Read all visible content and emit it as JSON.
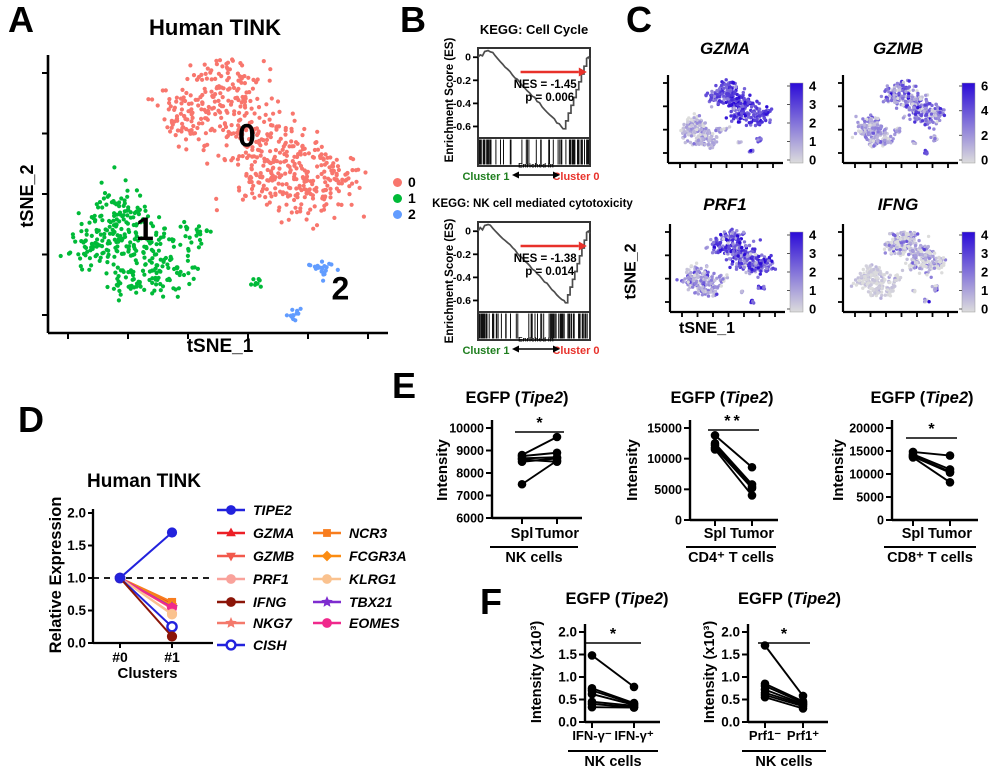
{
  "panels": {
    "a": "A",
    "b": "B",
    "c": "C",
    "d": "D",
    "e": "E",
    "f": "F"
  },
  "panel_c": {
    "xlabel": "tSNE_1",
    "ylabel": "tSNE_2"
  },
  "chart_data": [
    {
      "id": "tsne_clusters",
      "type": "scatter",
      "title": "Human TINK",
      "xlabel": "tSNE_1",
      "ylabel": "tSNE_2",
      "clusters": [
        {
          "name": "0",
          "color": "#F8766D",
          "annotation": {
            "text": "0",
            "x": 0.585,
            "y": 0.33
          },
          "blobs": [
            [
              0.52,
              0.1,
              0.1,
              85
            ],
            [
              0.42,
              0.22,
              0.1,
              95
            ],
            [
              0.57,
              0.26,
              0.12,
              105
            ],
            [
              0.68,
              0.36,
              0.12,
              115
            ],
            [
              0.78,
              0.49,
              0.1,
              95
            ],
            [
              0.62,
              0.46,
              0.09,
              55
            ],
            [
              0.86,
              0.43,
              0.06,
              38
            ]
          ]
        },
        {
          "name": "1",
          "color": "#00BA38",
          "annotation": {
            "text": "1",
            "x": 0.285,
            "y": 0.665
          },
          "blobs": [
            [
              0.2,
              0.56,
              0.09,
              75
            ],
            [
              0.15,
              0.69,
              0.09,
              75
            ],
            [
              0.28,
              0.68,
              0.1,
              85
            ],
            [
              0.35,
              0.79,
              0.08,
              55
            ],
            [
              0.24,
              0.81,
              0.06,
              35
            ],
            [
              0.44,
              0.65,
              0.05,
              22
            ],
            [
              0.615,
              0.815,
              0.016,
              8
            ]
          ]
        },
        {
          "name": "2",
          "color": "#619CFF",
          "annotation": {
            "text": "2",
            "x": 0.86,
            "y": 0.88
          },
          "blobs": [
            [
              0.81,
              0.77,
              0.033,
              22
            ],
            [
              0.725,
              0.935,
              0.02,
              12
            ]
          ]
        }
      ],
      "legend": [
        {
          "label": "0",
          "color": "#F8766D"
        },
        {
          "label": "1",
          "color": "#00BA38"
        },
        {
          "label": "2",
          "color": "#619CFF"
        }
      ]
    },
    {
      "id": "gsea_cell_cycle",
      "type": "gsea",
      "title": "KEGG: Cell Cycle",
      "ylabel": "Enrichment Score (ES)",
      "yticks": [
        "0",
        "-0.2",
        "-0.4",
        "-0.6"
      ],
      "ytick_values": [
        0,
        -0.2,
        -0.4,
        -0.6
      ],
      "es_min": -0.62,
      "es_min_pos": 0.76,
      "seed": 7,
      "stats": {
        "nes": "NES = -1.45",
        "p": "p = 0.006"
      },
      "barcode": {
        "left": [
          22,
          0.01,
          0.12
        ],
        "mid": [
          13,
          0.14,
          0.6
        ],
        "right": [
          42,
          0.63,
          0.99
        ]
      },
      "enriched_label": "Enriched in",
      "left": "Cluster 1",
      "right": "Cluster 0",
      "left_color": "#1E7E1E",
      "right_color": "#E8312A"
    },
    {
      "id": "gsea_nk_cytotoxicity",
      "type": "gsea",
      "title": "KEGG: NK cell mediated cytotoxicity",
      "ylabel": "Enrichment Score (ES)",
      "yticks": [
        "0",
        "-0.2",
        "-0.4",
        "-0.6"
      ],
      "ytick_values": [
        0,
        -0.2,
        -0.4,
        -0.6
      ],
      "es_min": -0.62,
      "es_min_pos": 0.78,
      "seed": 13,
      "stats": {
        "nes": "NES = -1.38",
        "p": "p = 0.014"
      },
      "barcode": {
        "left": [
          26,
          0.01,
          0.18
        ],
        "mid": [
          16,
          0.19,
          0.6
        ],
        "right": [
          40,
          0.62,
          0.99
        ]
      },
      "enriched_label": "Enriched in",
      "left": "Cluster 1",
      "right": "Cluster 0",
      "left_color": "#1E7E1E",
      "right_color": "#E8312A"
    },
    {
      "id": "feature_gzma",
      "type": "feature",
      "title": "GZMA",
      "max": 4,
      "colorbar_ticks": [
        "4",
        "3",
        "2",
        "1",
        "0"
      ],
      "expression": {
        "0": [
          2.9,
          0.8
        ],
        "1": [
          0.8,
          0.6
        ],
        "2": [
          2.4,
          0.7
        ]
      },
      "seed": 21,
      "color_low": "#DCDCDC",
      "color_high": "#2B0BD7"
    },
    {
      "id": "feature_gzmb",
      "type": "feature",
      "title": "GZMB",
      "max": 6,
      "colorbar_ticks": [
        "6",
        "4",
        "2",
        "0"
      ],
      "expression": {
        "0": [
          2.6,
          1.5
        ],
        "1": [
          1.6,
          1.1
        ],
        "2": [
          2.6,
          1.2
        ]
      },
      "seed": 22,
      "color_low": "#DCDCDC",
      "color_high": "#2B0BD7"
    },
    {
      "id": "feature_prf1",
      "type": "feature",
      "title": "PRF1",
      "max": 4,
      "colorbar_ticks": [
        "4",
        "3",
        "2",
        "1",
        "0"
      ],
      "expression": {
        "0": [
          2.4,
          1.0
        ],
        "1": [
          1.1,
          0.8
        ],
        "2": [
          2.2,
          0.8
        ]
      },
      "seed": 23,
      "color_low": "#DCDCDC",
      "color_high": "#2B0BD7"
    },
    {
      "id": "feature_ifng",
      "type": "feature",
      "title": "IFNG",
      "max": 4,
      "colorbar_ticks": [
        "4",
        "3",
        "2",
        "1",
        "0"
      ],
      "expression": {
        "0": [
          0.55,
          0.95
        ],
        "1": [
          0.18,
          0.38
        ],
        "2": [
          1.3,
          1.1
        ]
      },
      "seed": 24,
      "color_low": "#DCDCDC",
      "color_high": "#2B0BD7"
    },
    {
      "id": "relative_expression",
      "type": "slope",
      "title": "Human TINK",
      "ylabel": "Relative Expression",
      "xlabel": "Clusters",
      "categories": [
        "#0",
        "#1"
      ],
      "yticks": [
        "2.0",
        "1.5",
        "1.0",
        "0.5",
        "0.0"
      ],
      "ytick_values": [
        2.0,
        1.5,
        1.0,
        0.5,
        0.0
      ],
      "ylim": [
        0,
        2
      ],
      "dashed_y": 1.0,
      "series": [
        {
          "name": "GZMA",
          "color": "#EC1F26",
          "marker": "triangle-up",
          "values": [
            1.0,
            0.61
          ]
        },
        {
          "name": "GZMB",
          "color": "#F2594C",
          "marker": "triangle-down",
          "values": [
            1.0,
            0.56
          ]
        },
        {
          "name": "NKG7",
          "color": "#F4796B",
          "marker": "star",
          "values": [
            1.0,
            0.53
          ]
        },
        {
          "name": "NCR3",
          "color": "#F87D1E",
          "marker": "square",
          "values": [
            1.0,
            0.63
          ]
        },
        {
          "name": "FCGR3A",
          "color": "#FB8C12",
          "marker": "diamond",
          "values": [
            1.0,
            0.58
          ]
        },
        {
          "name": "TBX21",
          "color": "#7E2CCF",
          "marker": "star",
          "values": [
            1.0,
            0.55
          ]
        },
        {
          "name": "EOMES",
          "color": "#F0298C",
          "marker": "circle",
          "values": [
            1.0,
            0.54
          ]
        },
        {
          "name": "PRF1",
          "color": "#F9A29B",
          "marker": "circle",
          "values": [
            1.0,
            0.45
          ]
        },
        {
          "name": "KLRG1",
          "color": "#FAC28F",
          "marker": "circle",
          "values": [
            1.0,
            0.44
          ]
        },
        {
          "name": "CISH",
          "color": "#2222DD",
          "marker": "circle",
          "open": true,
          "values": [
            1.0,
            0.25
          ]
        },
        {
          "name": "IFNG",
          "color": "#8B1508",
          "marker": "circle",
          "values": [
            1.0,
            0.1
          ]
        },
        {
          "name": "TIPE2",
          "color": "#2222DD",
          "marker": "circle",
          "values": [
            1.0,
            1.7
          ]
        }
      ],
      "legend": {
        "col1": [
          "TIPE2",
          "GZMA",
          "GZMB",
          "PRF1",
          "IFNG",
          "NKG7",
          "CISH"
        ],
        "col2": [
          "NCR3",
          "FCGR3A",
          "KLRG1",
          "TBX21",
          "EOMES"
        ]
      }
    },
    {
      "id": "egfp_nk",
      "type": "paired",
      "title_pre": "EGFP (",
      "title_gene": "Tipe2",
      "title_post": ")",
      "ylabel": "Intensity",
      "ylim": [
        6000,
        10000
      ],
      "yticks": [
        "10000",
        "9000",
        "8000",
        "7000",
        "6000"
      ],
      "ytick_values": [
        10000,
        9000,
        8000,
        7000,
        6000
      ],
      "groups": [
        "Spl",
        "Tumor"
      ],
      "group_label": "NK cells",
      "sig": "*",
      "pairs": [
        [
          7500,
          8550
        ],
        [
          8500,
          8650
        ],
        [
          8600,
          8500
        ],
        [
          8650,
          8700
        ],
        [
          8750,
          8900
        ],
        [
          8800,
          9600
        ]
      ]
    },
    {
      "id": "egfp_cd4",
      "type": "paired",
      "title_pre": "EGFP (",
      "title_gene": "Tipe2",
      "title_post": ")",
      "ylabel": "Intensity",
      "ylim": [
        0,
        15000
      ],
      "yticks": [
        "15000",
        "10000",
        "5000",
        "0"
      ],
      "ytick_values": [
        15000,
        10000,
        5000,
        0
      ],
      "groups": [
        "Spl",
        "Tumor"
      ],
      "group_label": "CD4⁺ T cells",
      "sig": "**",
      "pairs": [
        [
          13800,
          8600
        ],
        [
          12500,
          5800
        ],
        [
          12200,
          5400
        ],
        [
          11800,
          5200
        ],
        [
          11500,
          4000
        ]
      ]
    },
    {
      "id": "egfp_cd8",
      "type": "paired",
      "title_pre": "EGFP (",
      "title_gene": "Tipe2",
      "title_post": ")",
      "ylabel": "Intensity",
      "ylim": [
        0,
        20000
      ],
      "yticks": [
        "20000",
        "15000",
        "10000",
        "5000",
        "0"
      ],
      "ytick_values": [
        20000,
        15000,
        10000,
        5000,
        0
      ],
      "groups": [
        "Spl",
        "Tumor"
      ],
      "group_label": "CD8⁺ T cells",
      "sig": "*",
      "pairs": [
        [
          14800,
          14000
        ],
        [
          14300,
          11000
        ],
        [
          14000,
          10500
        ],
        [
          13800,
          10300
        ],
        [
          13600,
          8200
        ]
      ]
    },
    {
      "id": "egfp_ifng_nk",
      "type": "paired",
      "title_pre": "EGFP (",
      "title_gene": "Tipe2",
      "title_post": ")",
      "ylabel": "Intensity (x10³)",
      "ylim": [
        0,
        2
      ],
      "yticks": [
        "2.0",
        "1.5",
        "1.0",
        "0.5",
        "0.0"
      ],
      "ytick_values": [
        2.0,
        1.5,
        1.0,
        0.5,
        0.0
      ],
      "groups": [
        "IFN-γ⁻",
        "IFN-γ⁺"
      ],
      "group_label": "NK cells",
      "sig": "*",
      "pairs": [
        [
          1.48,
          0.78
        ],
        [
          0.75,
          0.42
        ],
        [
          0.7,
          0.4
        ],
        [
          0.62,
          0.38
        ],
        [
          0.45,
          0.36
        ],
        [
          0.4,
          0.33
        ],
        [
          0.33,
          0.32
        ]
      ]
    },
    {
      "id": "egfp_prf1_nk",
      "type": "paired",
      "title_pre": "EGFP (",
      "title_gene": "Tipe2",
      "title_post": ")",
      "ylabel": "Intensity (x10³)",
      "ylim": [
        0,
        2
      ],
      "yticks": [
        "2.0",
        "1.5",
        "1.0",
        "0.5",
        "0.0"
      ],
      "ytick_values": [
        2.0,
        1.5,
        1.0,
        0.5,
        0.0
      ],
      "groups": [
        "Prf1⁻",
        "Prf1⁺"
      ],
      "group_label": "NK cells",
      "sig": "*",
      "pairs": [
        [
          1.7,
          0.58
        ],
        [
          0.85,
          0.46
        ],
        [
          0.8,
          0.43
        ],
        [
          0.72,
          0.4
        ],
        [
          0.65,
          0.38
        ],
        [
          0.6,
          0.35
        ],
        [
          0.55,
          0.3
        ]
      ]
    }
  ]
}
